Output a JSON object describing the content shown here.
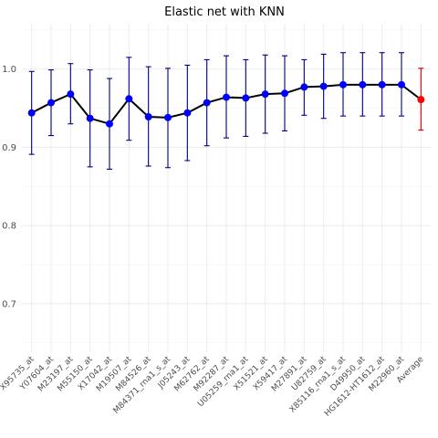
{
  "chart_data": {
    "type": "line",
    "title": "Elastic net with KNN",
    "xlabel": "",
    "ylabel": "",
    "categories": [
      "X95735_at",
      "Y07604_at",
      "M23197_at",
      "M55150_at",
      "X17042_at",
      "M19507_at",
      "M84526_at",
      "M84371_rna1_s_at",
      "J05243_at",
      "M62762_at",
      "M92287_at",
      "U05259_rna1_at",
      "X51521_at",
      "X59417_at",
      "M27891_at",
      "U82759_at",
      "X85116_rna1_s_at",
      "D49950_at",
      "HG1612-HT1612_at",
      "M22960_at",
      "Average"
    ],
    "values": [
      0.944,
      0.957,
      0.968,
      0.937,
      0.93,
      0.962,
      0.939,
      0.938,
      0.944,
      0.957,
      0.964,
      0.963,
      0.968,
      0.969,
      0.977,
      0.978,
      0.98,
      0.98,
      0.98,
      0.98,
      0.961
    ],
    "lower": [
      0.891,
      0.915,
      0.93,
      0.875,
      0.872,
      0.909,
      0.876,
      0.874,
      0.883,
      0.902,
      0.912,
      0.914,
      0.918,
      0.921,
      0.941,
      0.937,
      0.94,
      0.94,
      0.94,
      0.94,
      0.922
    ],
    "upper": [
      0.997,
      0.999,
      1.007,
      0.999,
      0.988,
      1.015,
      1.003,
      1.001,
      1.005,
      1.012,
      1.017,
      1.012,
      1.018,
      1.017,
      1.012,
      1.019,
      1.021,
      1.021,
      1.021,
      1.021,
      1.001
    ],
    "yticks": [
      "0.7",
      "0.8",
      "0.9",
      "1.0"
    ],
    "ytick_values": [
      0.7,
      0.8,
      0.9,
      1.0
    ],
    "ylim": [
      0.638,
      1.058
    ],
    "grid": true,
    "legend": "none",
    "colors": {
      "point": "#0000ff",
      "errorbar": "#000080",
      "line": "#000000",
      "average_point": "#ff0000",
      "average_errorbar": "#cc0000",
      "grid_major": "#ebebeb",
      "grid_minor": "#f5f5f5"
    }
  }
}
